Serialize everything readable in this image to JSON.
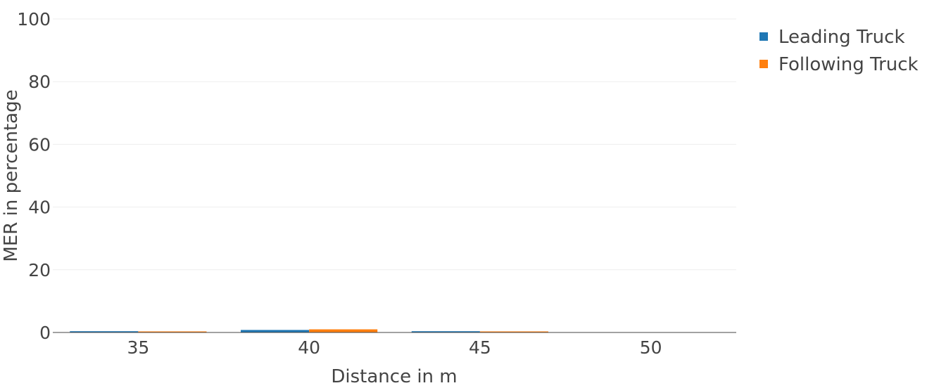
{
  "chart_data": {
    "type": "bar",
    "title": "",
    "xlabel": "Distance in m",
    "ylabel": "MER in percentage",
    "categories": [
      "35",
      "40",
      "45",
      "50"
    ],
    "series": [
      {
        "name": "Leading Truck",
        "color": "#1f77b4",
        "values": [
          0.4,
          0.8,
          0.4,
          0
        ]
      },
      {
        "name": "Following Truck",
        "color": "#ff7f0e",
        "values": [
          0.2,
          1.0,
          0.2,
          0
        ]
      }
    ],
    "ylim": [
      0,
      100
    ],
    "yticks": [
      0,
      20,
      40,
      60,
      80,
      100
    ],
    "grid": true,
    "legend_position": "top-right"
  }
}
